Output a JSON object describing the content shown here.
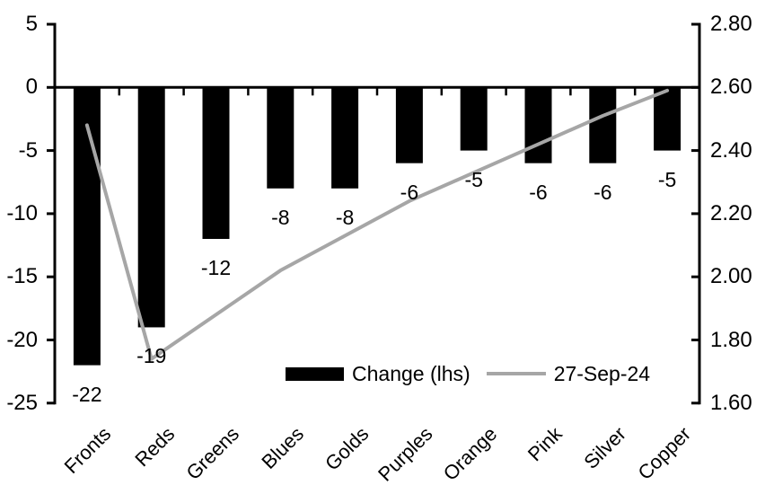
{
  "chart_data": {
    "type": "bar",
    "subtype": "bar-and-line-combo",
    "title": "",
    "categories": [
      "Fronts",
      "Reds",
      "Greens",
      "Blues",
      "Golds",
      "Purples",
      "Orange",
      "Pink",
      "Silver",
      "Copper"
    ],
    "series": [
      {
        "name": "Change (lhs)",
        "type": "bar",
        "axis": "left",
        "values": [
          -22,
          -19,
          -12,
          -8,
          -8,
          -6,
          -5,
          -6,
          -6,
          -5
        ]
      },
      {
        "name": "27-Sep-24",
        "type": "line",
        "axis": "right",
        "values": [
          2.48,
          1.74,
          1.88,
          2.02,
          2.13,
          2.24,
          2.33,
          2.42,
          2.51,
          2.59
        ]
      }
    ],
    "bar_labels": [
      "-22",
      "-19",
      "-12",
      "-8",
      "-8",
      "-6",
      "-5",
      "-6",
      "-6",
      "-5"
    ],
    "left_axis": {
      "min": -25,
      "max": 5,
      "step": 5,
      "tick_labels": [
        "5",
        "0",
        "-5",
        "-10",
        "-15",
        "-20",
        "-25"
      ]
    },
    "right_axis": {
      "min": 1.6,
      "max": 2.8,
      "step": 0.2,
      "tick_labels": [
        "2.80",
        "2.60",
        "2.40",
        "2.20",
        "2.00",
        "1.80",
        "1.60"
      ]
    },
    "grid": false,
    "legend_position": "inside-bottom",
    "legend": [
      {
        "label": "Change (lhs)",
        "swatch": "bar"
      },
      {
        "label": "27-Sep-24",
        "swatch": "line"
      }
    ]
  },
  "colors": {
    "bar": "#000000",
    "line": "#a6a6a6",
    "axis": "#000000",
    "text": "#000000",
    "background": "#ffffff"
  }
}
